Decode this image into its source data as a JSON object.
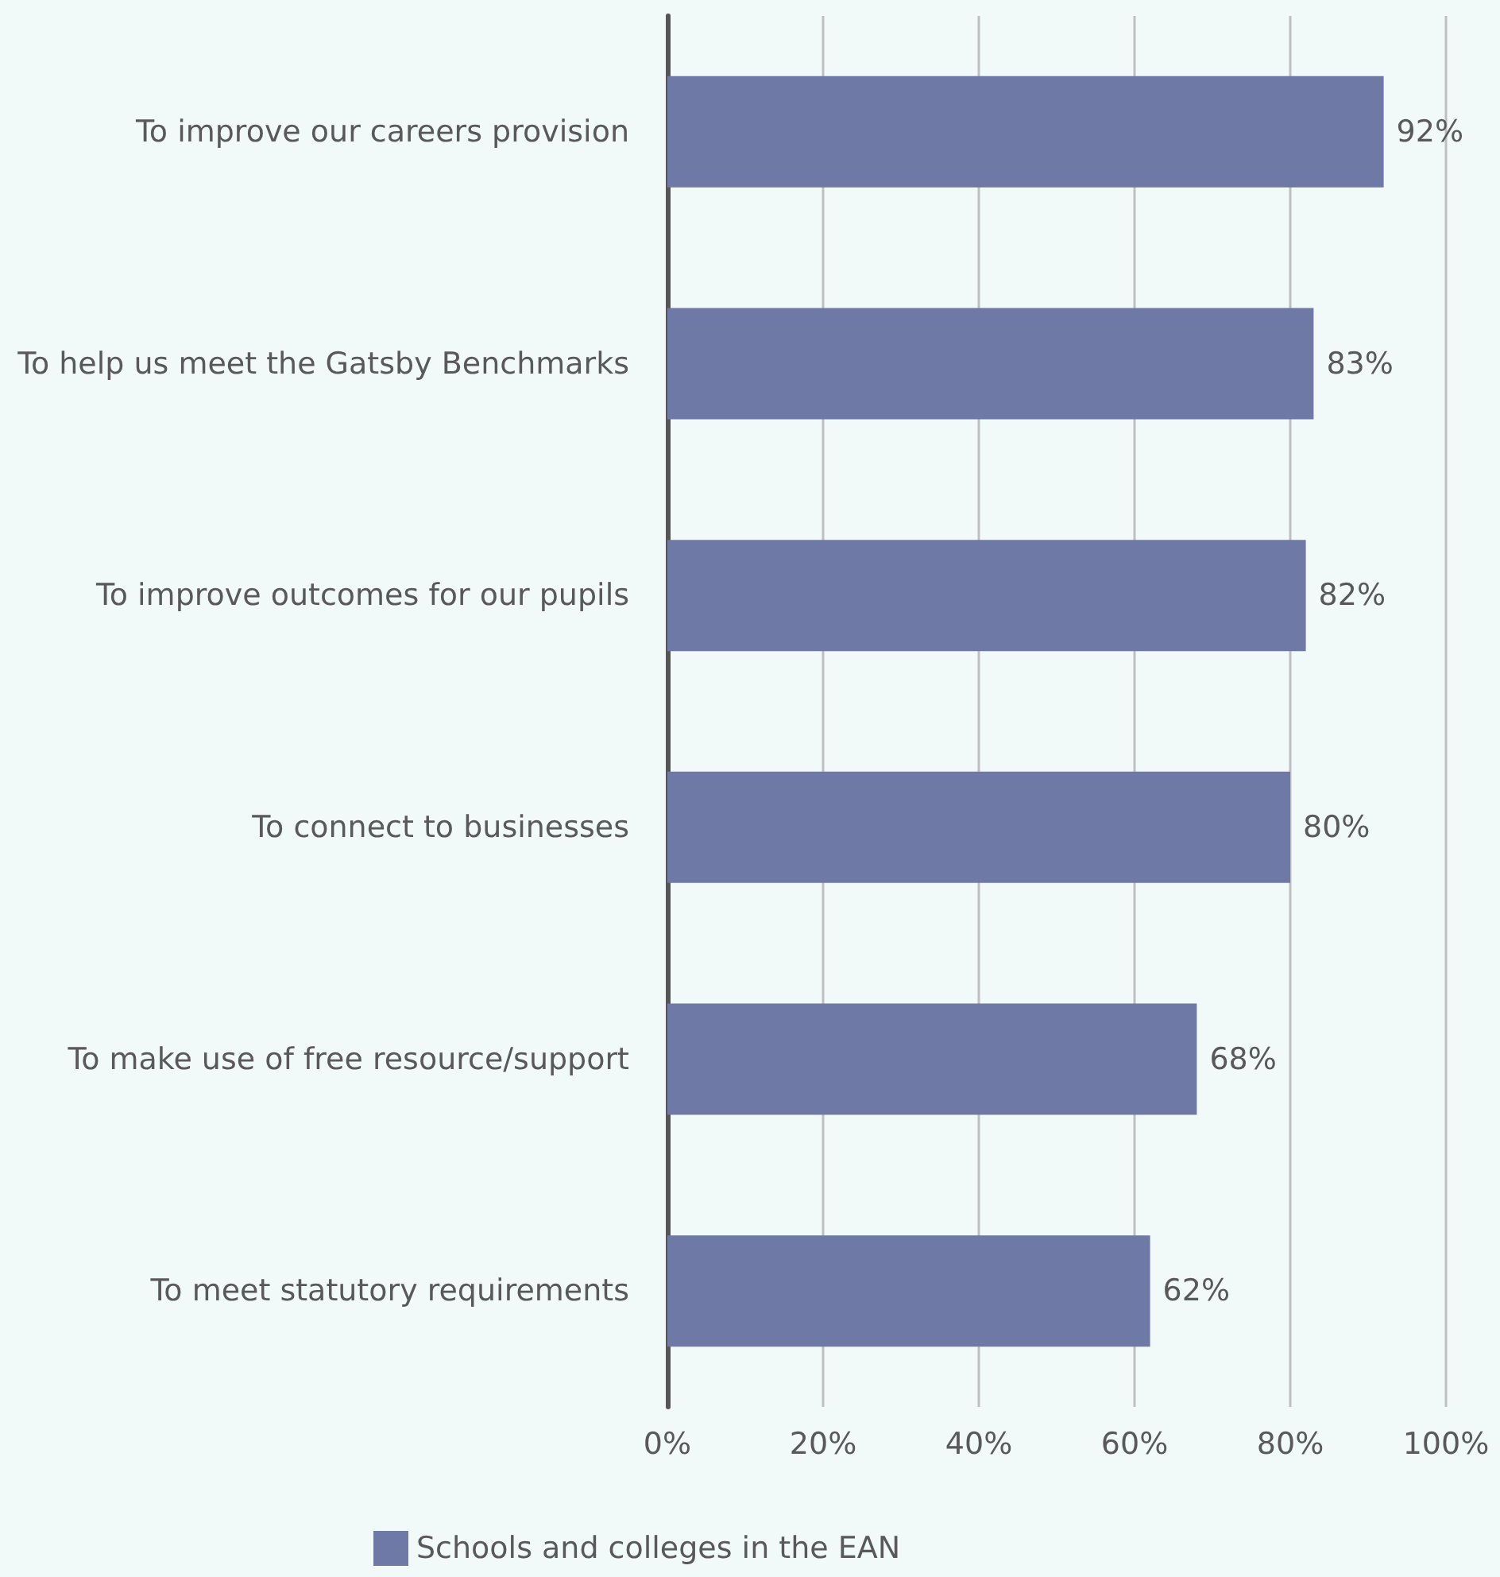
{
  "chart_data": {
    "type": "bar",
    "orientation": "horizontal",
    "categories": [
      "To improve our careers provision",
      "To help us meet the Gatsby Benchmarks",
      "To improve outcomes for our pupils",
      "To connect to businesses",
      "To make use of free resource/support",
      "To meet statutory requirements"
    ],
    "series": [
      {
        "name": "Schools and colleges in the EAN",
        "color": "#6f79a6",
        "values": [
          92,
          83,
          82,
          80,
          68,
          62
        ]
      }
    ],
    "value_labels": [
      "92%",
      "83%",
      "82%",
      "80%",
      "68%",
      "62%"
    ],
    "xlim": [
      0,
      100
    ],
    "xticks": [
      {
        "value": 0,
        "label": "0%"
      },
      {
        "value": 20,
        "label": "20%"
      },
      {
        "value": 40,
        "label": "40%"
      },
      {
        "value": 60,
        "label": "60%"
      },
      {
        "value": 80,
        "label": "80%"
      },
      {
        "value": 100,
        "label": "100%"
      }
    ],
    "grid": "x",
    "legend": "bottom"
  }
}
